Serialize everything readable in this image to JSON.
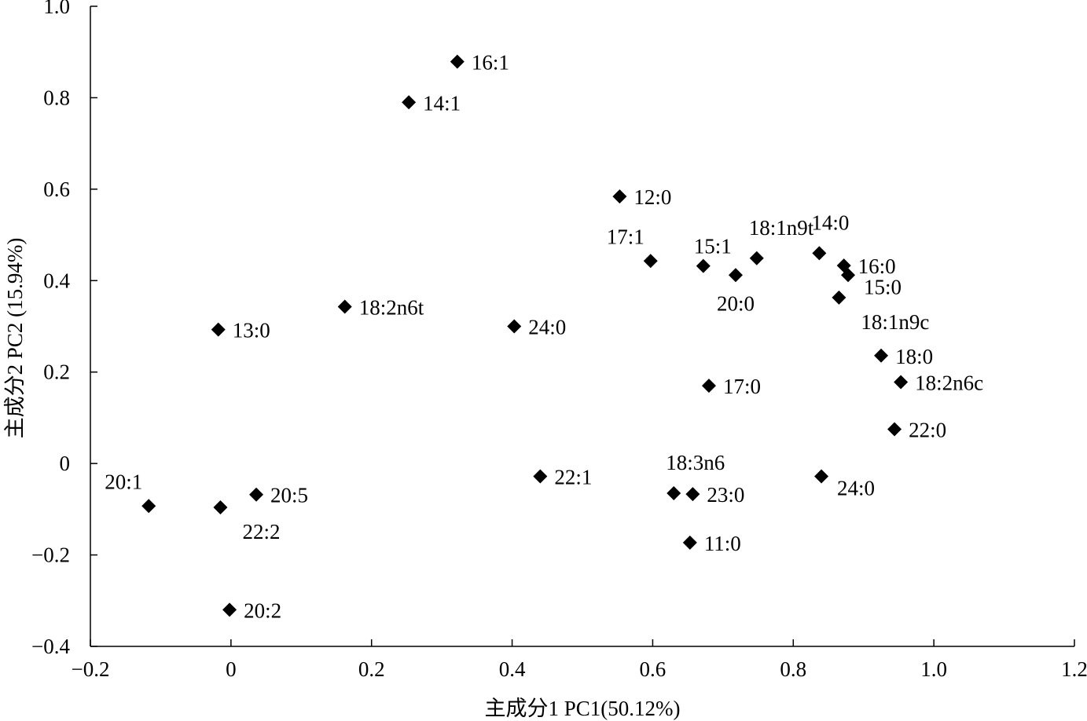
{
  "chart_data": {
    "type": "scatter",
    "xlabel": "主成分1 PC1(50.12%)",
    "ylabel": "主成分2 PC2 (15.94%)",
    "xlim": [
      -0.2,
      1.2
    ],
    "ylim": [
      -0.4,
      1.0
    ],
    "x_ticks": [
      -0.2,
      0,
      0.2,
      0.4,
      0.6,
      0.8,
      1.0,
      1.2
    ],
    "x_tick_labels": [
      "−0.2",
      "0",
      "0.2",
      "0.4",
      "0.6",
      "0.8",
      "1.0",
      "1.2"
    ],
    "y_ticks": [
      -0.4,
      -0.2,
      0,
      0.2,
      0.4,
      0.6,
      0.8,
      1.0
    ],
    "y_tick_labels": [
      "−0.4",
      "−0.2",
      "0",
      "0.2",
      "0.4",
      "0.6",
      "0.8",
      "1.0"
    ],
    "grid": false,
    "marker": "diamond",
    "marker_color": "#000000",
    "points": [
      {
        "label": "16:1",
        "x": 0.322,
        "y": 0.879,
        "label_pos": "right"
      },
      {
        "label": "14:1",
        "x": 0.253,
        "y": 0.79,
        "label_pos": "right"
      },
      {
        "label": "12:0",
        "x": 0.553,
        "y": 0.584,
        "label_pos": "right"
      },
      {
        "label": "17:1",
        "x": 0.597,
        "y": 0.443,
        "label_pos": "above-left"
      },
      {
        "label": "15:1",
        "x": 0.672,
        "y": 0.432,
        "label_pos": "above"
      },
      {
        "label": "20:0",
        "x": 0.718,
        "y": 0.412,
        "label_pos": "below"
      },
      {
        "label": "18:1n9t",
        "x": 0.748,
        "y": 0.449,
        "label_pos": "above-right"
      },
      {
        "label": "14:0",
        "x": 0.837,
        "y": 0.46,
        "label_pos": "above-right"
      },
      {
        "label": "16:0",
        "x": 0.872,
        "y": 0.433,
        "label_pos": "right"
      },
      {
        "label": "15:0",
        "x": 0.878,
        "y": 0.412,
        "label_pos": "right-below"
      },
      {
        "label": "18:1n9c",
        "x": 0.865,
        "y": 0.363,
        "label_pos": "below-right"
      },
      {
        "label": "18:2n6t",
        "x": 0.162,
        "y": 0.343,
        "label_pos": "right"
      },
      {
        "label": "13:0",
        "x": -0.018,
        "y": 0.293,
        "label_pos": "right"
      },
      {
        "label": "24:0",
        "x": 0.403,
        "y": 0.3,
        "label_pos": "right"
      },
      {
        "label": "18:0",
        "x": 0.925,
        "y": 0.236,
        "label_pos": "right"
      },
      {
        "label": "18:2n6c",
        "x": 0.953,
        "y": 0.178,
        "label_pos": "right"
      },
      {
        "label": "17:0",
        "x": 0.68,
        "y": 0.17,
        "label_pos": "right"
      },
      {
        "label": "22:0",
        "x": 0.944,
        "y": 0.075,
        "label_pos": "right"
      },
      {
        "label": "20:1",
        "x": -0.117,
        "y": -0.093,
        "label_pos": "above-left"
      },
      {
        "label": "22:2",
        "x": -0.015,
        "y": -0.096,
        "label_pos": "below-right"
      },
      {
        "label": "20:5",
        "x": 0.036,
        "y": -0.068,
        "label_pos": "right"
      },
      {
        "label": "22:1",
        "x": 0.44,
        "y": -0.028,
        "label_pos": "right"
      },
      {
        "label": "18:3n6",
        "x": 0.63,
        "y": -0.065,
        "label_pos": "above-right"
      },
      {
        "label": "23:0",
        "x": 0.657,
        "y": -0.067,
        "label_pos": "right"
      },
      {
        "label": "24:0",
        "x": 0.84,
        "y": -0.028,
        "label_pos": "right-below"
      },
      {
        "label": "11:0",
        "x": 0.653,
        "y": -0.173,
        "label_pos": "right"
      },
      {
        "label": "20:2",
        "x": -0.002,
        "y": -0.32,
        "label_pos": "right"
      }
    ]
  }
}
